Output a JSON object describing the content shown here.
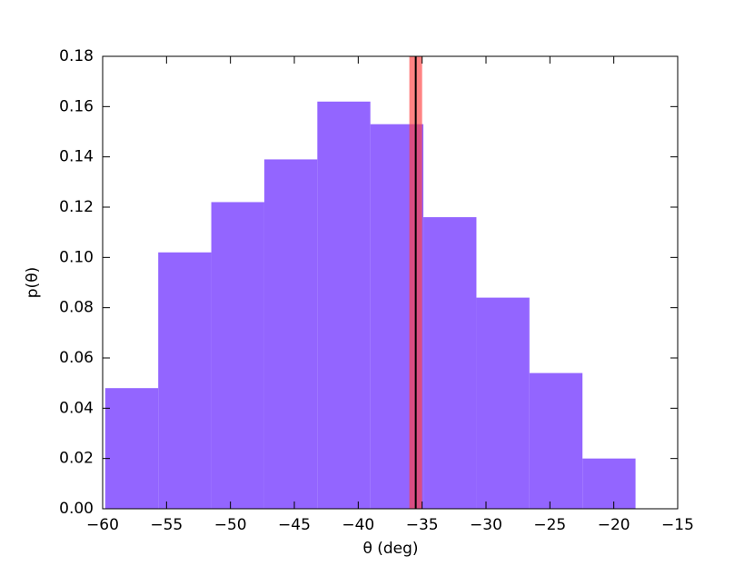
{
  "chart_data": {
    "type": "histogram",
    "xlabel": "θ (deg)",
    "ylabel": "p(θ)",
    "bins": [
      -59.8,
      -55.65,
      -51.5,
      -47.35,
      -43.2,
      -39.05,
      -34.9,
      -30.75,
      -26.6,
      -22.45,
      -18.3
    ],
    "values": [
      0.048,
      0.102,
      0.122,
      0.139,
      0.162,
      0.153,
      0.116,
      0.084,
      0.054,
      0.02
    ],
    "color": "#9060ff",
    "vspan": [
      -36.0,
      -35.0
    ],
    "vspan_color": "#ff4040",
    "vline": -35.5,
    "vline_color": "#000000",
    "xlim": [
      -60,
      -15
    ],
    "xticks": [
      {
        "value": -60,
        "label": "−60"
      },
      {
        "value": -55,
        "label": "−55"
      },
      {
        "value": -50,
        "label": "−50"
      },
      {
        "value": -45,
        "label": "−45"
      },
      {
        "value": -40,
        "label": "−40"
      },
      {
        "value": -35,
        "label": "−35"
      },
      {
        "value": -30,
        "label": "−30"
      },
      {
        "value": -25,
        "label": "−25"
      },
      {
        "value": -20,
        "label": "−20"
      },
      {
        "value": -15,
        "label": "−15"
      }
    ],
    "ylim": [
      0,
      0.18
    ],
    "yticks": [
      {
        "value": 0,
        "label": "0.00"
      },
      {
        "value": 0.02,
        "label": "0.02"
      },
      {
        "value": 0.04,
        "label": "0.04"
      },
      {
        "value": 0.06,
        "label": "0.06"
      },
      {
        "value": 0.08,
        "label": "0.08"
      },
      {
        "value": 0.1,
        "label": "0.10"
      },
      {
        "value": 0.12,
        "label": "0.12"
      },
      {
        "value": 0.14,
        "label": "0.14"
      },
      {
        "value": 0.16,
        "label": "0.16"
      },
      {
        "value": 0.18,
        "label": "0.18"
      }
    ]
  }
}
